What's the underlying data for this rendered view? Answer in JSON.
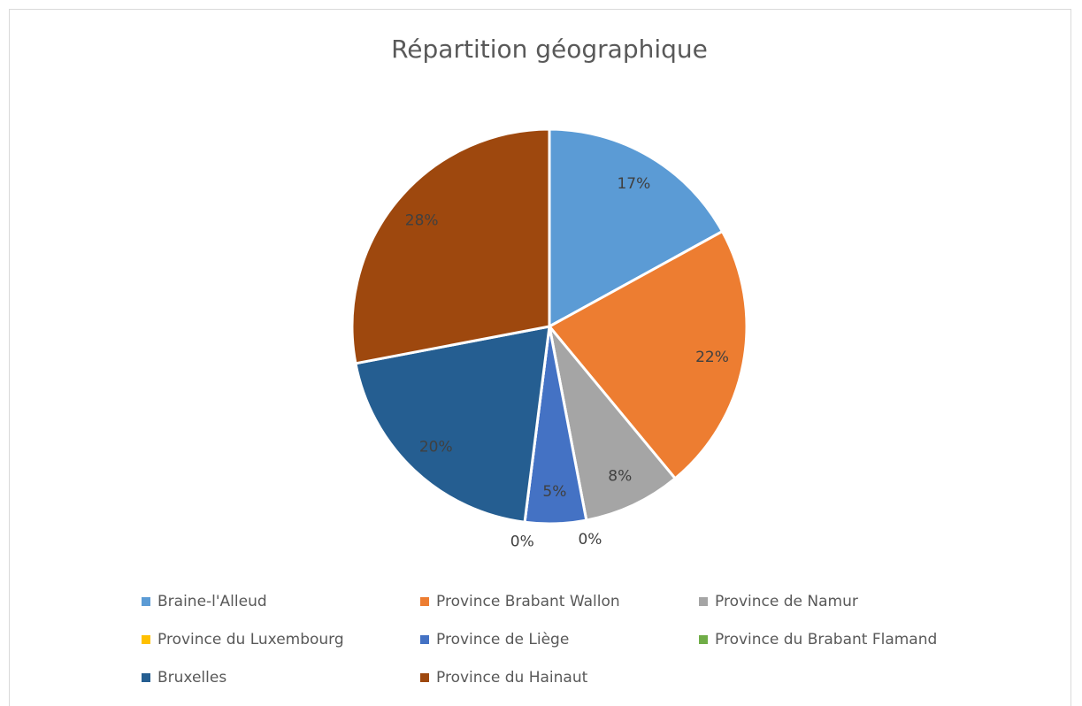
{
  "chart_data": {
    "type": "pie",
    "title": "Répartition géographique",
    "categories": [
      "Braine-l'Alleud",
      "Province Brabant Wallon",
      "Province de Namur",
      "Province du Luxembourg",
      "Province de Liège",
      "Province du Brabant Flamand",
      "Bruxelles",
      "Province du Hainaut"
    ],
    "values": [
      17,
      22,
      8,
      0,
      5,
      0,
      20,
      28
    ],
    "value_labels": [
      "17%",
      "22%",
      "8%",
      "0%",
      "5%",
      "0%",
      "20%",
      "28%"
    ],
    "colors": [
      "#5b9bd5",
      "#ed7d31",
      "#a5a5a5",
      "#ffc000",
      "#4472c4",
      "#70ad47",
      "#255e91",
      "#9e480e"
    ],
    "legend": "bottom"
  }
}
